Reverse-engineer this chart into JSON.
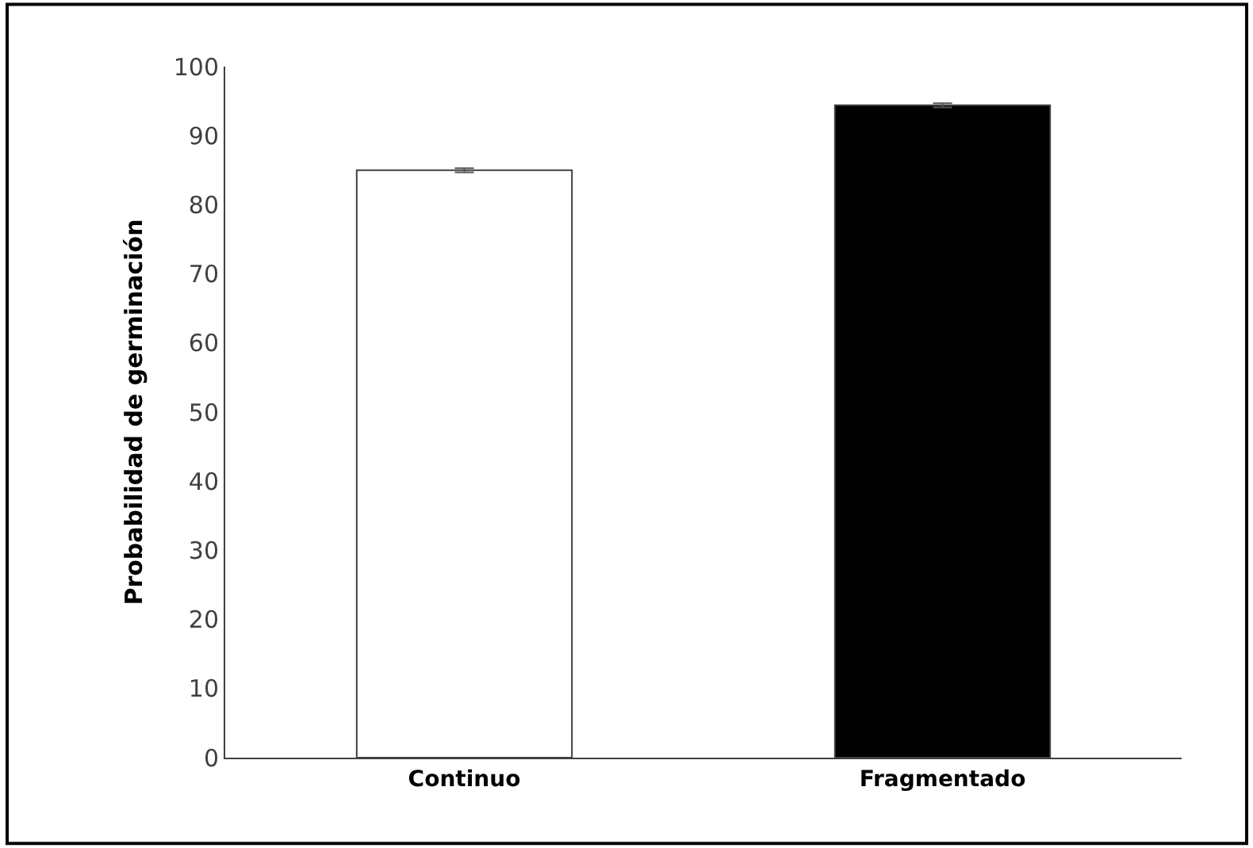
{
  "chart_data": {
    "type": "bar",
    "ylabel": "Probabilidad de germinación",
    "categories": [
      "Continuo",
      "Fragmentado"
    ],
    "values": [
      85,
      94.4
    ],
    "colors": [
      "#ffffff",
      "#000000"
    ],
    "errors": [
      0.3,
      0.3
    ],
    "ylim": [
      0,
      100
    ],
    "yticks": [
      0,
      10,
      20,
      30,
      40,
      50,
      60,
      70,
      80,
      90,
      100
    ]
  }
}
